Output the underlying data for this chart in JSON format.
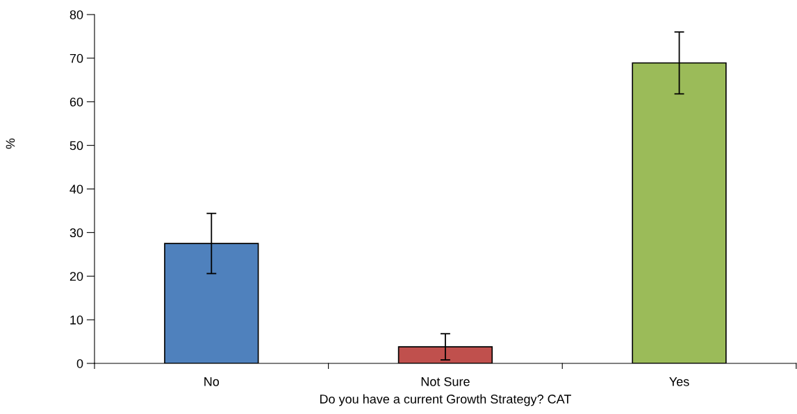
{
  "chart_data": {
    "type": "bar",
    "xlabel": "Do you have a current Growth Strategy? CAT",
    "ylabel": "%",
    "categories": [
      "No",
      "Not Sure",
      "Yes"
    ],
    "values": [
      27.5,
      3.8,
      68.9
    ],
    "errors": [
      6.9,
      3.0,
      7.1
    ],
    "colors": [
      "#4f81bd",
      "#c0504d",
      "#9bbb59"
    ],
    "ylim": [
      0,
      80
    ],
    "yticks": [
      0,
      10,
      20,
      30,
      40,
      50,
      60,
      70,
      80
    ],
    "grid": false,
    "legend": false
  }
}
